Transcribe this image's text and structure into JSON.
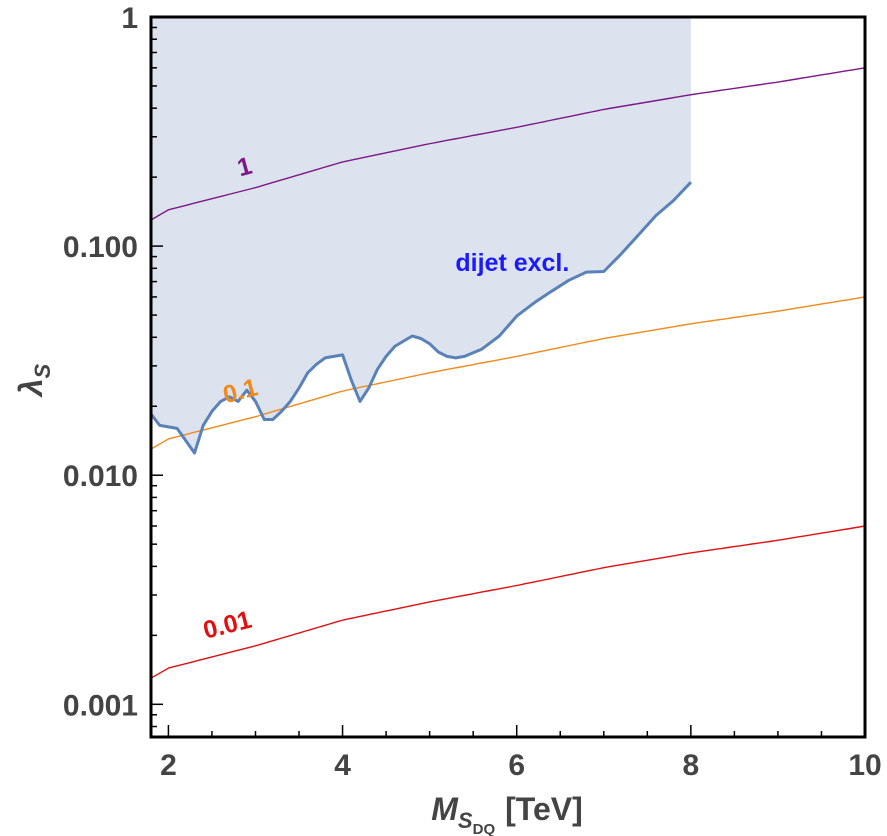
{
  "chart_data": {
    "type": "line",
    "x_scale": "linear",
    "y_scale": "log",
    "xlim": [
      1.8,
      10
    ],
    "ylim": [
      0.00072,
      1.0
    ],
    "xticks": [
      {
        "value": 2,
        "label": "2"
      },
      {
        "value": 4,
        "label": "4"
      },
      {
        "value": 6,
        "label": "6"
      },
      {
        "value": 8,
        "label": "8"
      },
      {
        "value": 10,
        "label": "10"
      }
    ],
    "yticks": [
      {
        "value": 1,
        "label": "1"
      },
      {
        "value": 0.1,
        "label": "0.100"
      },
      {
        "value": 0.01,
        "label": "0.010"
      },
      {
        "value": 0.001,
        "label": "0.001"
      }
    ],
    "xlabel": {
      "main": "M",
      "sub": "S",
      "subsub": "DQ",
      "unit": "[TeV]"
    },
    "ylabel": {
      "main": "λ",
      "sub": "S"
    },
    "grid": false,
    "series": [
      {
        "name": "1",
        "color": "#7b1a86",
        "label_at": [
          2.9,
          0.205
        ],
        "x": [
          1.8,
          2,
          3,
          4,
          5,
          6,
          7,
          8,
          9,
          10
        ],
        "y": [
          0.13,
          0.144,
          0.18,
          0.233,
          0.28,
          0.33,
          0.395,
          0.458,
          0.52,
          0.6
        ]
      },
      {
        "name": "0.1",
        "color": "#f08a1c",
        "label_at": [
          2.85,
          0.0215
        ],
        "x": [
          1.8,
          2,
          3,
          4,
          5,
          6,
          7,
          8,
          9,
          10
        ],
        "y": [
          0.013,
          0.0144,
          0.018,
          0.0233,
          0.028,
          0.033,
          0.0395,
          0.0458,
          0.052,
          0.06
        ]
      },
      {
        "name": "0.01",
        "color": "#e01010",
        "label_at": [
          2.7,
          0.00205
        ],
        "x": [
          1.8,
          2,
          3,
          4,
          5,
          6,
          7,
          8,
          9,
          10
        ],
        "y": [
          0.0013,
          0.00144,
          0.0018,
          0.00233,
          0.0028,
          0.0033,
          0.00395,
          0.00458,
          0.0052,
          0.006
        ]
      }
    ],
    "exclusion": {
      "label": "dijet excl.",
      "label_at": [
        5.95,
        0.078
      ],
      "fill_color": "#dde3ee",
      "line_color": "#5a82b8",
      "boundary": {
        "x": [
          1.8,
          1.9,
          2.1,
          2.3,
          2.4,
          2.5,
          2.6,
          2.7,
          2.8,
          2.9,
          3.0,
          3.1,
          3.2,
          3.3,
          3.4,
          3.5,
          3.6,
          3.7,
          3.8,
          3.9,
          4.0,
          4.1,
          4.2,
          4.3,
          4.4,
          4.5,
          4.6,
          4.7,
          4.8,
          4.9,
          5.0,
          5.1,
          5.2,
          5.3,
          5.4,
          5.6,
          5.8,
          6.0,
          6.2,
          6.4,
          6.6,
          6.8,
          7.0,
          7.2,
          7.4,
          7.6,
          7.8,
          8.0
        ],
        "y": [
          0.0185,
          0.0165,
          0.016,
          0.0125,
          0.0165,
          0.019,
          0.021,
          0.022,
          0.021,
          0.0235,
          0.021,
          0.0175,
          0.0175,
          0.019,
          0.021,
          0.024,
          0.028,
          0.0305,
          0.0325,
          0.033,
          0.0335,
          0.026,
          0.021,
          0.024,
          0.029,
          0.033,
          0.0365,
          0.0385,
          0.0405,
          0.0395,
          0.0375,
          0.0345,
          0.033,
          0.0325,
          0.033,
          0.0355,
          0.0405,
          0.0495,
          0.0565,
          0.0635,
          0.071,
          0.077,
          0.0775,
          0.0925,
          0.112,
          0.136,
          0.158,
          0.19
        ]
      }
    }
  }
}
